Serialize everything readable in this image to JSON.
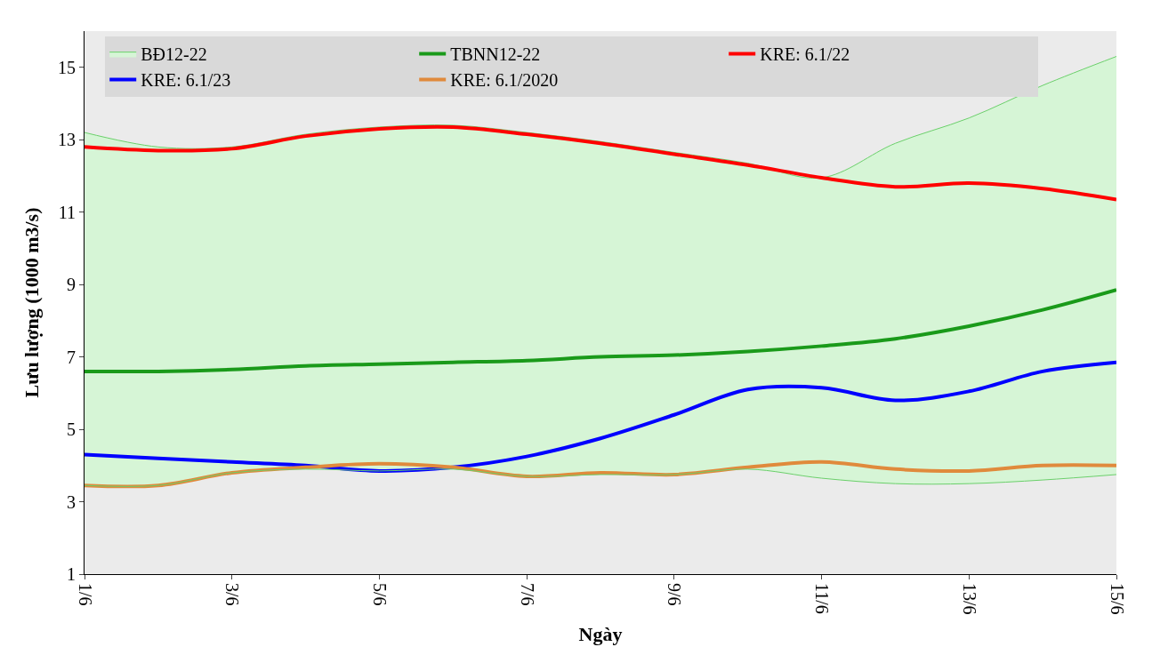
{
  "chart_data": {
    "type": "line",
    "xlabel": "Ngày",
    "ylabel": "Lưu lượng (1000 m3/s)",
    "categories": [
      "1/6",
      null,
      "3/6",
      null,
      "5/6",
      null,
      "7/6",
      null,
      "9/6",
      null,
      "11/6",
      null,
      "13/6",
      null,
      "15/6"
    ],
    "ylim": [
      1,
      16
    ],
    "yticks": [
      1,
      3,
      5,
      7,
      9,
      11,
      13,
      15
    ],
    "grid": false,
    "legend": "top",
    "line_style": "solid",
    "marker": "none",
    "series": [
      {
        "type": "line",
        "color": "#6bd06b",
        "values": [
          3.45,
          3.45,
          3.8,
          3.9,
          3.85,
          3.9,
          3.7,
          3.75,
          3.75,
          3.9,
          3.65,
          3.5,
          3.5,
          3.6,
          3.75
        ]
      },
      {
        "name": "BĐ12-22",
        "type": "area",
        "color": "#d6f5d6",
        "values": [
          13.2,
          12.8,
          12.8,
          13.15,
          13.35,
          13.4,
          13.2,
          12.95,
          12.65,
          12.35,
          11.95,
          12.9,
          13.6,
          14.5,
          15.3
        ]
      },
      {
        "name": "TBNN12-22",
        "color": "#1a9a1a",
        "values": [
          6.6,
          6.6,
          6.65,
          6.75,
          6.8,
          6.85,
          6.9,
          7.0,
          7.05,
          7.15,
          7.3,
          7.5,
          7.85,
          8.3,
          8.85
        ]
      },
      {
        "name": "KRE: 6.1/22",
        "color": "#ff0000",
        "values": [
          12.8,
          12.7,
          12.75,
          13.1,
          13.3,
          13.35,
          13.15,
          12.9,
          12.6,
          12.3,
          11.95,
          11.7,
          11.8,
          11.65,
          11.35
        ]
      },
      {
        "name": "KRE: 6.1/23",
        "color": "#0000ff",
        "values": [
          4.3,
          4.2,
          4.1,
          4.0,
          3.85,
          3.95,
          4.25,
          4.75,
          5.4,
          6.1,
          6.15,
          5.8,
          6.05,
          6.6,
          6.85
        ]
      },
      {
        "name": "KRE: 6.1/2020",
        "color": "#e08a3c",
        "values": [
          3.45,
          3.45,
          3.8,
          3.95,
          4.05,
          3.95,
          3.7,
          3.8,
          3.75,
          3.95,
          4.1,
          3.9,
          3.85,
          4.0,
          4.0
        ]
      }
    ]
  }
}
